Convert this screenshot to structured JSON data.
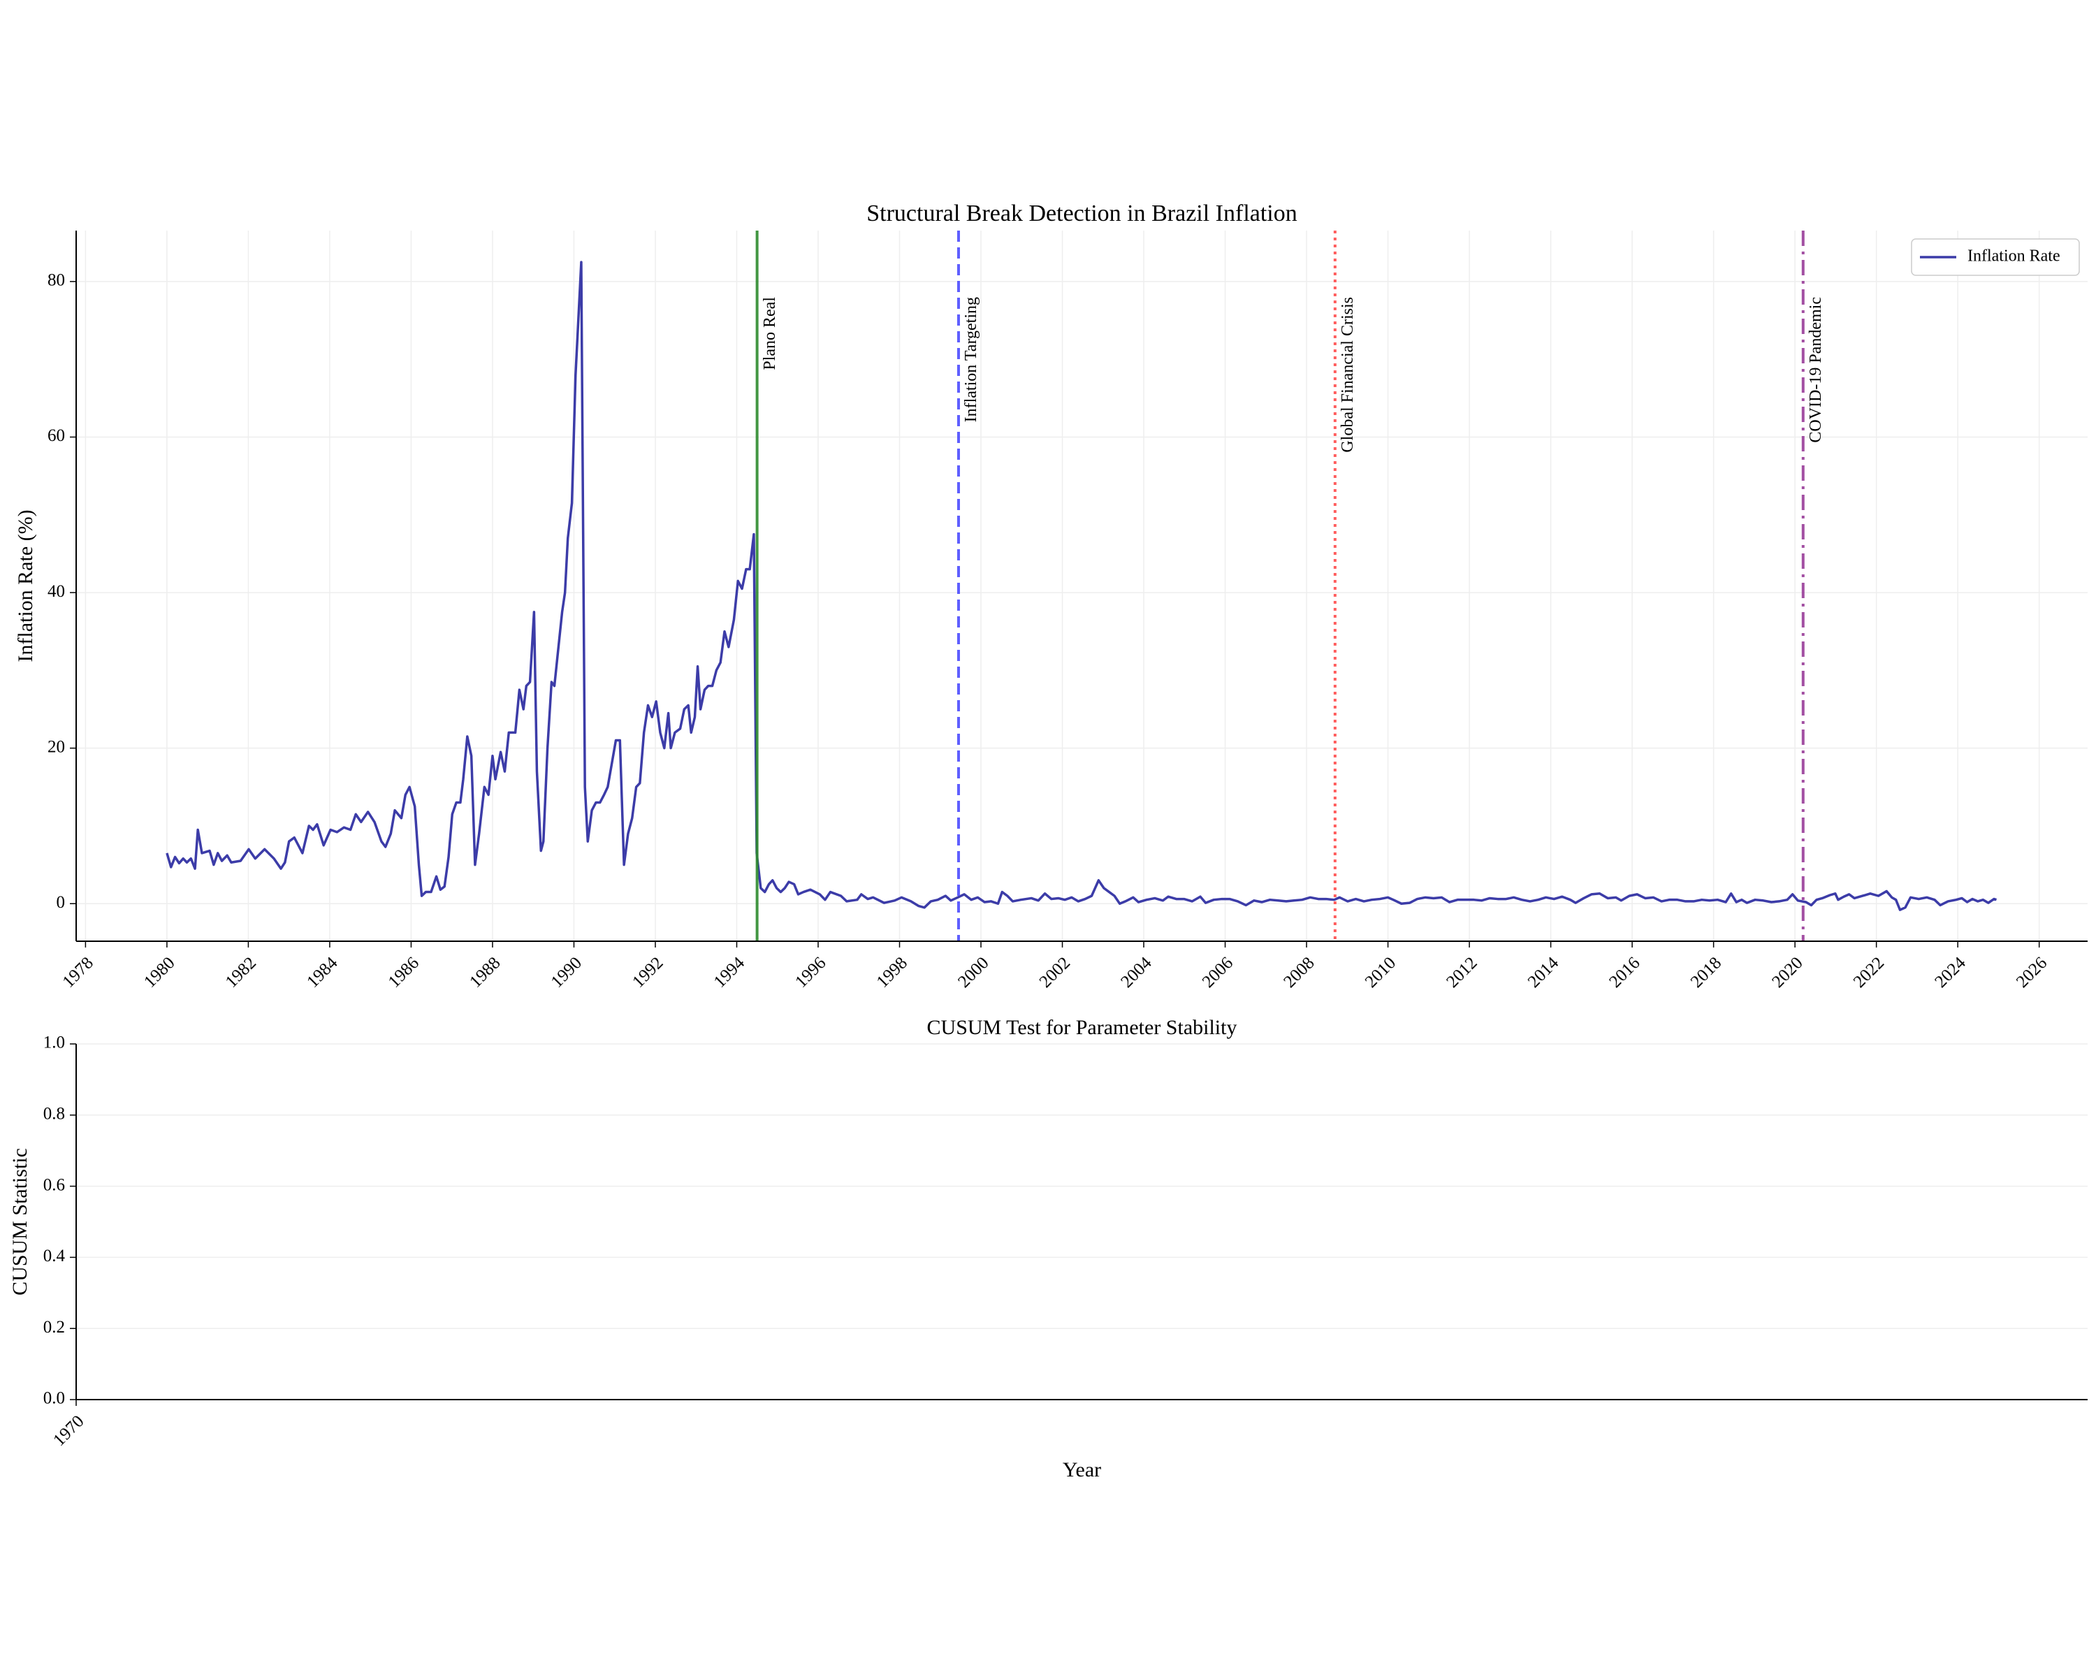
{
  "chart_data": [
    {
      "type": "line",
      "title": "Structural Break Detection in Brazil Inflation",
      "ylabel": "Inflation Rate (%)",
      "xlim": [
        1977.77,
        2027.19
      ],
      "ylim": [
        -4.83,
        86.55
      ],
      "xticks": [
        1978,
        1980,
        1982,
        1984,
        1986,
        1988,
        1990,
        1992,
        1994,
        1996,
        1998,
        2000,
        2002,
        2004,
        2006,
        2008,
        2010,
        2012,
        2014,
        2016,
        2018,
        2020,
        2022,
        2024,
        2026
      ],
      "yticks": [
        0,
        20,
        40,
        60,
        80
      ],
      "grid": true,
      "legend": "upper right",
      "x": [
        1980.0,
        1980.1,
        1980.2,
        1980.3,
        1980.4,
        1980.49,
        1980.59,
        1980.69,
        1980.76,
        1980.86,
        1981.05,
        1981.15,
        1981.25,
        1981.35,
        1981.48,
        1981.58,
        1981.81,
        1982.01,
        1982.17,
        1982.4,
        1982.63,
        1982.8,
        1982.9,
        1983.0,
        1983.13,
        1983.33,
        1983.49,
        1983.59,
        1983.69,
        1983.85,
        1984.02,
        1984.18,
        1984.35,
        1984.51,
        1984.64,
        1984.77,
        1984.94,
        1985.1,
        1985.27,
        1985.37,
        1985.5,
        1985.6,
        1985.76,
        1985.86,
        1985.96,
        1986.09,
        1986.19,
        1986.26,
        1986.36,
        1986.49,
        1986.62,
        1986.72,
        1986.82,
        1986.92,
        1987.01,
        1987.11,
        1987.21,
        1987.28,
        1987.38,
        1987.48,
        1987.57,
        1987.67,
        1987.8,
        1987.9,
        1988.0,
        1988.07,
        1988.2,
        1988.3,
        1988.4,
        1988.56,
        1988.66,
        1988.76,
        1988.83,
        1988.92,
        1989.02,
        1989.09,
        1989.19,
        1989.25,
        1989.35,
        1989.45,
        1989.52,
        1989.62,
        1989.71,
        1989.78,
        1989.85,
        1989.95,
        1990.04,
        1990.18,
        1990.27,
        1990.34,
        1990.44,
        1990.54,
        1990.64,
        1990.74,
        1990.83,
        1990.93,
        1991.03,
        1991.13,
        1991.23,
        1991.33,
        1991.43,
        1991.53,
        1991.62,
        1991.72,
        1991.82,
        1991.92,
        1992.02,
        1992.12,
        1992.22,
        1992.32,
        1992.38,
        1992.48,
        1992.61,
        1992.71,
        1992.81,
        1992.88,
        1992.97,
        1993.04,
        1993.11,
        1993.21,
        1993.3,
        1993.4,
        1993.5,
        1993.6,
        1993.7,
        1993.8,
        1993.93,
        1994.03,
        1994.13,
        1994.23,
        1994.32,
        1994.42,
        1994.49,
        1994.59,
        1994.69,
        1994.79,
        1994.88,
        1994.98,
        1995.08,
        1995.18,
        1995.28,
        1995.41,
        1995.51,
        1995.64,
        1995.81,
        1996.04,
        1996.17,
        1996.3,
        1996.56,
        1996.7,
        1996.96,
        1997.06,
        1997.22,
        1997.35,
        1997.62,
        1997.88,
        1998.05,
        1998.28,
        1998.47,
        1998.61,
        1998.77,
        1998.94,
        1999.13,
        1999.26,
        1999.43,
        1999.59,
        1999.76,
        1999.92,
        2000.09,
        2000.25,
        2000.42,
        2000.52,
        2000.65,
        2000.78,
        2000.98,
        2001.24,
        2001.41,
        2001.57,
        2001.73,
        2001.9,
        2002.06,
        2002.23,
        2002.39,
        2002.56,
        2002.72,
        2002.89,
        2003.02,
        2003.15,
        2003.28,
        2003.41,
        2003.55,
        2003.74,
        2003.87,
        2004.07,
        2004.27,
        2004.47,
        2004.6,
        2004.8,
        2004.99,
        2005.19,
        2005.39,
        2005.52,
        2005.72,
        2005.92,
        2006.11,
        2006.31,
        2006.51,
        2006.71,
        2006.9,
        2007.1,
        2007.3,
        2007.5,
        2007.69,
        2007.89,
        2008.09,
        2008.29,
        2008.48,
        2008.68,
        2008.81,
        2009.01,
        2009.21,
        2009.41,
        2009.6,
        2009.8,
        2010.0,
        2010.13,
        2010.33,
        2010.53,
        2010.72,
        2010.92,
        2011.12,
        2011.32,
        2011.51,
        2011.71,
        2011.91,
        2012.11,
        2012.3,
        2012.5,
        2012.7,
        2012.9,
        2013.09,
        2013.29,
        2013.49,
        2013.69,
        2013.88,
        2014.08,
        2014.28,
        2014.48,
        2014.61,
        2014.81,
        2015.0,
        2015.2,
        2015.4,
        2015.6,
        2015.73,
        2015.93,
        2016.12,
        2016.32,
        2016.52,
        2016.72,
        2016.91,
        2017.11,
        2017.31,
        2017.51,
        2017.71,
        2017.9,
        2018.1,
        2018.3,
        2018.43,
        2018.56,
        2018.69,
        2018.82,
        2019.02,
        2019.22,
        2019.42,
        2019.61,
        2019.81,
        2019.94,
        2020.07,
        2020.27,
        2020.4,
        2020.53,
        2020.67,
        2020.86,
        2020.99,
        2021.06,
        2021.2,
        2021.33,
        2021.46,
        2021.66,
        2021.85,
        2022.05,
        2022.25,
        2022.38,
        2022.48,
        2022.58,
        2022.71,
        2022.84,
        2023.04,
        2023.24,
        2023.43,
        2023.57,
        2023.76,
        2023.96,
        2024.1,
        2024.23,
        2024.36,
        2024.49,
        2024.62,
        2024.75,
        2024.89,
        2024.95
      ],
      "series": [
        {
          "name": "Inflation Rate",
          "color": "#3c3ca8",
          "values": [
            6.5,
            4.7,
            6,
            5.2,
            5.8,
            5.3,
            5.8,
            4.5,
            9.5,
            6.5,
            6.8,
            5,
            6.5,
            5.5,
            6.2,
            5.3,
            5.5,
            7,
            5.8,
            7,
            5.8,
            4.5,
            5.3,
            8,
            8.5,
            6.5,
            10,
            9.5,
            10.2,
            7.5,
            9.5,
            9.2,
            9.8,
            9.5,
            11.5,
            10.5,
            11.8,
            10.5,
            8,
            7.3,
            9,
            12,
            11,
            14,
            15,
            12.5,
            5,
            1,
            1.5,
            1.5,
            3.5,
            1.8,
            2.2,
            6,
            11.5,
            13,
            13,
            16,
            21.5,
            19,
            5,
            9,
            15,
            14,
            19,
            16,
            19.5,
            17,
            22,
            22,
            27.5,
            25,
            28,
            28.5,
            37.5,
            17,
            6.8,
            8,
            20,
            28.5,
            28,
            33,
            37.5,
            40,
            47,
            51.5,
            68,
            82.5,
            15,
            8,
            12,
            13,
            13,
            14,
            15,
            18,
            21,
            21,
            5,
            9,
            11,
            15,
            15.5,
            22,
            25.5,
            24,
            26,
            22,
            20,
            24.5,
            20,
            22,
            22.5,
            25,
            25.5,
            22,
            24,
            30.5,
            25,
            27.5,
            28,
            28,
            30,
            31,
            35,
            33,
            36.5,
            41.5,
            40.5,
            43,
            43,
            47.5,
            6.5,
            2,
            1.5,
            2.5,
            3,
            2,
            1.5,
            2,
            2.8,
            2.5,
            1.2,
            1.5,
            1.8,
            1.2,
            0.5,
            1.5,
            1,
            0.3,
            0.5,
            1.2,
            0.6,
            0.8,
            0.1,
            0.4,
            0.8,
            0.3,
            -0.3,
            -0.5,
            0.3,
            0.5,
            1,
            0.4,
            0.8,
            1.2,
            0.5,
            0.8,
            0.2,
            0.3,
            0,
            1.5,
            1,
            0.3,
            0.5,
            0.7,
            0.4,
            1.3,
            0.6,
            0.7,
            0.5,
            0.8,
            0.3,
            0.6,
            1,
            3,
            2,
            1.5,
            1,
            0,
            0.3,
            0.8,
            0.2,
            0.5,
            0.7,
            0.4,
            0.9,
            0.6,
            0.6,
            0.3,
            0.9,
            0.1,
            0.5,
            0.6,
            0.6,
            0.3,
            -0.2,
            0.4,
            0.2,
            0.5,
            0.4,
            0.3,
            0.4,
            0.5,
            0.8,
            0.6,
            0.6,
            0.5,
            0.8,
            0.3,
            0.6,
            0.3,
            0.5,
            0.6,
            0.8,
            0.5,
            0,
            0.1,
            0.6,
            0.8,
            0.7,
            0.8,
            0.2,
            0.5,
            0.5,
            0.5,
            0.4,
            0.7,
            0.6,
            0.6,
            0.8,
            0.5,
            0.3,
            0.5,
            0.8,
            0.6,
            0.9,
            0.5,
            0.1,
            0.7,
            1.2,
            1.3,
            0.7,
            0.8,
            0.4,
            1,
            1.2,
            0.7,
            0.8,
            0.3,
            0.5,
            0.5,
            0.3,
            0.3,
            0.5,
            0.4,
            0.5,
            0.2,
            1.3,
            0.2,
            0.5,
            0.1,
            0.5,
            0.4,
            0.2,
            0.3,
            0.5,
            1.2,
            0.4,
            0.2,
            -0.2,
            0.5,
            0.7,
            1.1,
            1.3,
            0.5,
            0.9,
            1.2,
            0.7,
            1,
            1.3,
            1,
            1.6,
            0.8,
            0.5,
            -0.8,
            -0.5,
            0.8,
            0.6,
            0.8,
            0.5,
            -0.2,
            0.3,
            0.5,
            0.7,
            0.2,
            0.6,
            0.3,
            0.5,
            0.1,
            0.6,
            0.5
          ]
        }
      ],
      "events": [
        {
          "x": 1994.5,
          "label": "Plano Real",
          "color": "#2e8b2e",
          "text_color": "#006400",
          "style": "solid"
        },
        {
          "x": 1999.45,
          "label": "Inflation Targeting",
          "color": "#4d4dff",
          "text_color": "#0000ff",
          "style": "dashed"
        },
        {
          "x": 2008.7,
          "label": "Global Financial Crisis",
          "color": "#ff4d4d",
          "text_color": "#ff0000",
          "style": "dotted"
        },
        {
          "x": 2020.2,
          "label": "COVID-19 Pandemic",
          "color": "#993d99",
          "text_color": "#800080",
          "style": "dashdot"
        }
      ]
    },
    {
      "type": "line",
      "title": "CUSUM Test for Parameter Stability",
      "ylabel": "CUSUM Statistic",
      "xlabel": "Year",
      "xlim": [
        1970,
        1971
      ],
      "ylim": [
        0,
        1
      ],
      "xticks": [
        1970
      ],
      "yticks": [
        {
          "value": 0,
          "label": "0.0"
        },
        0.2,
        0.4,
        0.6,
        0.8,
        {
          "value": 1,
          "label": "1.0"
        }
      ],
      "grid": true
    }
  ]
}
